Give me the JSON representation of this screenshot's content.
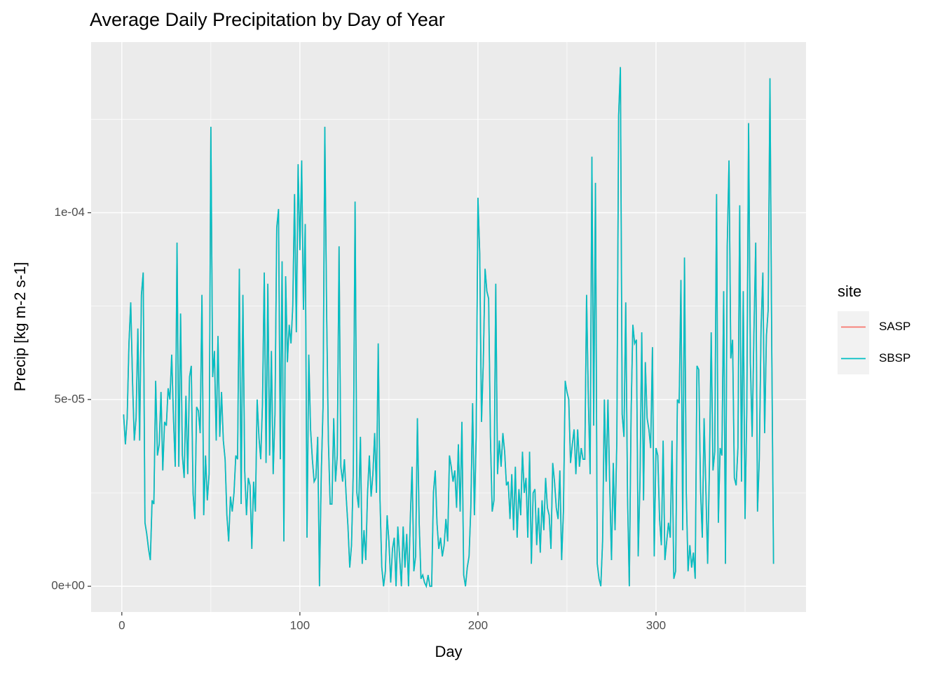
{
  "chart_data": {
    "type": "line",
    "title": "Average Daily Precipitation by Day of Year",
    "x_label": "Day",
    "y_label": "Precip [kg m-2 s-1]",
    "legend_title": "site",
    "legend_position": "right",
    "grid": true,
    "xlim": [
      -17.25,
      384.25
    ],
    "xticks": [
      0,
      100,
      200,
      300
    ],
    "ylim": [
      -6.9e-06,
      0.0001457
    ],
    "yticks": [
      {
        "value": 0,
        "label": "0e+00"
      },
      {
        "value": 5e-05,
        "label": "5e-05"
      },
      {
        "value": 0.0001,
        "label": "1e-04"
      }
    ],
    "x": [
      1,
      2,
      3,
      4,
      5,
      6,
      7,
      8,
      9,
      10,
      11,
      12,
      13,
      14,
      15,
      16,
      17,
      18,
      19,
      20,
      21,
      22,
      23,
      24,
      25,
      26,
      27,
      28,
      29,
      30,
      31,
      32,
      33,
      34,
      35,
      36,
      37,
      38,
      39,
      40,
      41,
      42,
      43,
      44,
      45,
      46,
      47,
      48,
      49,
      50,
      51,
      52,
      53,
      54,
      55,
      56,
      57,
      58,
      59,
      60,
      61,
      62,
      63,
      64,
      65,
      66,
      67,
      68,
      69,
      70,
      71,
      72,
      73,
      74,
      75,
      76,
      77,
      78,
      79,
      80,
      81,
      82,
      83,
      84,
      85,
      86,
      87,
      88,
      89,
      90,
      91,
      92,
      93,
      94,
      95,
      96,
      97,
      98,
      99,
      100,
      101,
      102,
      103,
      104,
      105,
      106,
      107,
      108,
      109,
      110,
      111,
      112,
      113,
      114,
      115,
      116,
      117,
      118,
      119,
      120,
      121,
      122,
      123,
      124,
      125,
      126,
      127,
      128,
      129,
      130,
      131,
      132,
      133,
      134,
      135,
      136,
      137,
      138,
      139,
      140,
      141,
      142,
      143,
      144,
      145,
      146,
      147,
      148,
      149,
      150,
      151,
      152,
      153,
      154,
      155,
      156,
      157,
      158,
      159,
      160,
      161,
      162,
      163,
      164,
      165,
      166,
      167,
      168,
      169,
      170,
      171,
      172,
      173,
      174,
      175,
      176,
      177,
      178,
      179,
      180,
      181,
      182,
      183,
      184,
      185,
      186,
      187,
      188,
      189,
      190,
      191,
      192,
      193,
      194,
      195,
      196,
      197,
      198,
      199,
      200,
      201,
      202,
      203,
      204,
      205,
      206,
      207,
      208,
      209,
      210,
      211,
      212,
      213,
      214,
      215,
      216,
      217,
      218,
      219,
      220,
      221,
      222,
      223,
      224,
      225,
      226,
      227,
      228,
      229,
      230,
      231,
      232,
      233,
      234,
      235,
      236,
      237,
      238,
      239,
      240,
      241,
      242,
      243,
      244,
      245,
      246,
      247,
      248,
      249,
      250,
      251,
      252,
      253,
      254,
      255,
      256,
      257,
      258,
      259,
      260,
      261,
      262,
      263,
      264,
      265,
      266,
      267,
      268,
      269,
      270,
      271,
      272,
      273,
      274,
      275,
      276,
      277,
      278,
      279,
      280,
      281,
      282,
      283,
      284,
      285,
      286,
      287,
      288,
      289,
      290,
      291,
      292,
      293,
      294,
      295,
      296,
      297,
      298,
      299,
      300,
      301,
      302,
      303,
      304,
      305,
      306,
      307,
      308,
      309,
      310,
      311,
      312,
      313,
      314,
      315,
      316,
      317,
      318,
      319,
      320,
      321,
      322,
      323,
      324,
      325,
      326,
      327,
      328,
      329,
      330,
      331,
      332,
      333,
      334,
      335,
      336,
      337,
      338,
      339,
      340,
      341,
      342,
      343,
      344,
      345,
      346,
      347,
      348,
      349,
      350,
      351,
      352,
      353,
      354,
      355,
      356,
      357,
      358,
      359,
      360,
      361,
      362,
      363,
      364,
      365,
      366
    ],
    "series": [
      {
        "name": "SASP",
        "color": "#F8766D",
        "values": [
          4.6e-05,
          3.8e-05,
          4.5e-05,
          6.5e-05,
          7.6e-05,
          5.5e-05,
          3.9e-05,
          4.5e-05,
          6.9e-05,
          3.9e-05,
          7.8e-05,
          8.4e-05,
          1.7e-05,
          1.4e-05,
          1e-05,
          7e-06,
          2.3e-05,
          2.2e-05,
          5.5e-05,
          3.5e-05,
          3.8e-05,
          5.2e-05,
          3.1e-05,
          4.4e-05,
          4.3e-05,
          5.3e-05,
          5e-05,
          6.2e-05,
          4.5e-05,
          3.2e-05,
          9.2e-05,
          3.2e-05,
          7.3e-05,
          3.5e-05,
          2.9e-05,
          5.1e-05,
          3e-05,
          5.6e-05,
          5.9e-05,
          2.5e-05,
          1.8e-05,
          4.8e-05,
          4.7e-05,
          4.1e-05,
          7.8e-05,
          1.9e-05,
          3.5e-05,
          2.3e-05,
          3e-05,
          0.000123,
          5.6e-05,
          6.3e-05,
          3.9e-05,
          6.7e-05,
          4e-05,
          5.2e-05,
          3.9e-05,
          3.4e-05,
          1.9e-05,
          1.2e-05,
          2.4e-05,
          2e-05,
          2.5e-05,
          3.5e-05,
          3.4e-05,
          8.5e-05,
          2.2e-05,
          7.8e-05,
          3.1e-05,
          1.9e-05,
          2.9e-05,
          2.7e-05,
          1e-05,
          2.8e-05,
          2e-05,
          5e-05,
          4e-05,
          3.4e-05,
          4.9e-05,
          8.4e-05,
          3.3e-05,
          8.1e-05,
          3.5e-05,
          6.3e-05,
          3e-05,
          4.6e-05,
          9.6e-05,
          0.000101,
          3.4e-05,
          8.7e-05,
          1.2e-05,
          8.3e-05,
          6e-05,
          7e-05,
          6.5e-05,
          7.5e-05,
          0.000105,
          6.8e-05,
          0.000113,
          9e-05,
          0.000114,
          7.4e-05,
          9.7e-05,
          1.3e-05,
          6.2e-05,
          4.2e-05,
          3.4e-05,
          2.8e-05,
          2.9e-05,
          4e-05,
          0,
          3e-05,
          4.8e-05,
          0.000123,
          7.4e-05,
          3.9e-05,
          2.2e-05,
          2.2e-05,
          4.5e-05,
          2.8e-05,
          3.5e-05,
          9.1e-05,
          3.2e-05,
          2.8e-05,
          3.4e-05,
          2.4e-05,
          1.6e-05,
          5e-06,
          1.1e-05,
          3.1e-05,
          0.000103,
          2.5e-05,
          2.1e-05,
          4e-05,
          6e-06,
          1.5e-05,
          7e-06,
          2.5e-05,
          3.5e-05,
          2.4e-05,
          3e-05,
          4.1e-05,
          2.5e-05,
          6.5e-05,
          2.3e-05,
          5e-06,
          0,
          4e-06,
          1.9e-05,
          1.2e-05,
          1e-06,
          1e-05,
          1.3e-05,
          0,
          1.6e-05,
          8e-06,
          0,
          1.6e-05,
          5e-06,
          1.4e-05,
          0,
          1.8e-05,
          3.2e-05,
          4e-06,
          8e-06,
          4.5e-05,
          1.7e-05,
          2e-06,
          3e-06,
          1e-06,
          0,
          3e-06,
          0,
          0,
          2.5e-05,
          3.1e-05,
          1.7e-05,
          1e-05,
          1.3e-05,
          8e-06,
          1.1e-05,
          1.8e-05,
          1.2e-05,
          3.5e-05,
          3.2e-05,
          2.8e-05,
          3.1e-05,
          2.1e-05,
          3.8e-05,
          2e-05,
          4.4e-05,
          3e-06,
          0,
          5e-06,
          8e-06,
          2.1e-05,
          4.9e-05,
          1.9e-05,
          4e-05,
          0.000104,
          8.9e-05,
          4.4e-05,
          6e-05,
          8.5e-05,
          7.9e-05,
          7.7e-05,
          4e-05,
          2e-05,
          2.3e-05,
          8.1e-05,
          3e-05,
          3.9e-05,
          3.2e-05,
          4.1e-05,
          3.6e-05,
          2.7e-05,
          2.8e-05,
          1.8e-05,
          3e-05,
          1.5e-05,
          3.2e-05,
          1.3e-05,
          2.6e-05,
          1.9e-05,
          3.6e-05,
          2.5e-05,
          2.9e-05,
          1.3e-05,
          3.6e-05,
          6e-06,
          2.5e-05,
          2.6e-05,
          1.1e-05,
          2.1e-05,
          9e-06,
          2.3e-05,
          1.5e-05,
          2.9e-05,
          2.1e-05,
          1.9e-05,
          1e-05,
          3.3e-05,
          2.8e-05,
          2.1e-05,
          1.8e-05,
          3.1e-05,
          7e-06,
          2e-05,
          5.5e-05,
          5.2e-05,
          5e-05,
          3.3e-05,
          3.8e-05,
          4.2e-05,
          3e-05,
          4.2e-05,
          3.2e-05,
          3.7e-05,
          3.4e-05,
          3.4e-05,
          7.8e-05,
          5e-05,
          3e-05,
          0.000115,
          4.3e-05,
          0.000108,
          6e-06,
          2e-06,
          0,
          1.2e-05,
          5e-05,
          2.8e-05,
          5e-05,
          2.7e-05,
          7e-06,
          3.3e-05,
          1.5e-05,
          3.9e-05,
          0.000126,
          0.000139,
          4.6e-05,
          4e-05,
          7.6e-05,
          2.4e-05,
          0,
          4.6e-05,
          7e-05,
          6.5e-05,
          6.6e-05,
          8e-06,
          2.8e-05,
          6.8e-05,
          2.3e-05,
          6e-05,
          4.5e-05,
          4.2e-05,
          3.7e-05,
          6.4e-05,
          8e-06,
          3.7e-05,
          3.5e-05,
          1.8e-05,
          1.1e-05,
          3.9e-05,
          7e-06,
          1.2e-05,
          1.7e-05,
          1.3e-05,
          3.9e-05,
          2e-06,
          4e-06,
          5e-05,
          4.9e-05,
          8.2e-05,
          1.5e-05,
          8.8e-05,
          2.5e-05,
          4e-06,
          1.1e-05,
          5e-06,
          9e-06,
          2e-06,
          5.9e-05,
          5.8e-05,
          2.6e-05,
          1.3e-05,
          4.5e-05,
          2.6e-05,
          6e-06,
          3.2e-05,
          6.8e-05,
          3.1e-05,
          3.6e-05,
          0.000105,
          1.7e-05,
          3.7e-05,
          3.5e-05,
          7.9e-05,
          6e-06,
          9.1e-05,
          0.000114,
          6.1e-05,
          6.6e-05,
          2.9e-05,
          2.7e-05,
          3.7e-05,
          0.000102,
          2.8e-05,
          7.9e-05,
          1.8e-05,
          4.8e-05,
          0.000124,
          6e-05,
          4e-05,
          6.8e-05,
          9.2e-05,
          2e-05,
          3.4e-05,
          6.9e-05,
          8.4e-05,
          4.1e-05,
          6.7e-05,
          7.4e-05,
          0.000136,
          6.4e-05,
          6e-06
        ]
      },
      {
        "name": "SBSP",
        "color": "#00BFC4",
        "values": [
          4.6e-05,
          3.8e-05,
          4.5e-05,
          6.5e-05,
          7.6e-05,
          5.5e-05,
          3.9e-05,
          4.5e-05,
          6.9e-05,
          3.9e-05,
          7.8e-05,
          8.4e-05,
          1.7e-05,
          1.4e-05,
          1e-05,
          7e-06,
          2.3e-05,
          2.2e-05,
          5.5e-05,
          3.5e-05,
          3.8e-05,
          5.2e-05,
          3.1e-05,
          4.4e-05,
          4.3e-05,
          5.3e-05,
          5e-05,
          6.2e-05,
          4.5e-05,
          3.2e-05,
          9.2e-05,
          3.2e-05,
          7.3e-05,
          3.5e-05,
          2.9e-05,
          5.1e-05,
          3e-05,
          5.6e-05,
          5.9e-05,
          2.5e-05,
          1.8e-05,
          4.8e-05,
          4.7e-05,
          4.1e-05,
          7.8e-05,
          1.9e-05,
          3.5e-05,
          2.3e-05,
          3e-05,
          0.000123,
          5.6e-05,
          6.3e-05,
          3.9e-05,
          6.7e-05,
          4e-05,
          5.2e-05,
          3.9e-05,
          3.4e-05,
          1.9e-05,
          1.2e-05,
          2.4e-05,
          2e-05,
          2.5e-05,
          3.5e-05,
          3.4e-05,
          8.5e-05,
          2.2e-05,
          7.8e-05,
          3.1e-05,
          1.9e-05,
          2.9e-05,
          2.7e-05,
          1e-05,
          2.8e-05,
          2e-05,
          5e-05,
          4e-05,
          3.4e-05,
          4.9e-05,
          8.4e-05,
          3.3e-05,
          8.1e-05,
          3.5e-05,
          6.3e-05,
          3e-05,
          4.6e-05,
          9.6e-05,
          0.000101,
          3.4e-05,
          8.7e-05,
          1.2e-05,
          8.3e-05,
          6e-05,
          7e-05,
          6.5e-05,
          7.5e-05,
          0.000105,
          6.8e-05,
          0.000113,
          9e-05,
          0.000114,
          7.4e-05,
          9.7e-05,
          1.3e-05,
          6.2e-05,
          4.2e-05,
          3.4e-05,
          2.8e-05,
          2.9e-05,
          4e-05,
          0,
          3e-05,
          4.8e-05,
          0.000123,
          7.4e-05,
          3.9e-05,
          2.2e-05,
          2.2e-05,
          4.5e-05,
          2.8e-05,
          3.5e-05,
          9.1e-05,
          3.2e-05,
          2.8e-05,
          3.4e-05,
          2.4e-05,
          1.6e-05,
          5e-06,
          1.1e-05,
          3.1e-05,
          0.000103,
          2.5e-05,
          2.1e-05,
          4e-05,
          6e-06,
          1.5e-05,
          7e-06,
          2.5e-05,
          3.5e-05,
          2.4e-05,
          3e-05,
          4.1e-05,
          2.5e-05,
          6.5e-05,
          2.3e-05,
          5e-06,
          0,
          4e-06,
          1.9e-05,
          1.2e-05,
          1e-06,
          1e-05,
          1.3e-05,
          0,
          1.6e-05,
          8e-06,
          0,
          1.6e-05,
          5e-06,
          1.4e-05,
          0,
          1.8e-05,
          3.2e-05,
          4e-06,
          8e-06,
          4.5e-05,
          1.7e-05,
          2e-06,
          3e-06,
          1e-06,
          0,
          3e-06,
          0,
          0,
          2.5e-05,
          3.1e-05,
          1.7e-05,
          1e-05,
          1.3e-05,
          8e-06,
          1.1e-05,
          1.8e-05,
          1.2e-05,
          3.5e-05,
          3.2e-05,
          2.8e-05,
          3.1e-05,
          2.1e-05,
          3.8e-05,
          2e-05,
          4.4e-05,
          3e-06,
          0,
          5e-06,
          8e-06,
          2.1e-05,
          4.9e-05,
          1.9e-05,
          4e-05,
          0.000104,
          8.9e-05,
          4.4e-05,
          6e-05,
          8.5e-05,
          7.9e-05,
          7.7e-05,
          4e-05,
          2e-05,
          2.3e-05,
          8.1e-05,
          3e-05,
          3.9e-05,
          3.2e-05,
          4.1e-05,
          3.6e-05,
          2.7e-05,
          2.8e-05,
          1.8e-05,
          3e-05,
          1.5e-05,
          3.2e-05,
          1.3e-05,
          2.6e-05,
          1.9e-05,
          3.6e-05,
          2.5e-05,
          2.9e-05,
          1.3e-05,
          3.6e-05,
          6e-06,
          2.5e-05,
          2.6e-05,
          1.1e-05,
          2.1e-05,
          9e-06,
          2.3e-05,
          1.5e-05,
          2.9e-05,
          2.1e-05,
          1.9e-05,
          1e-05,
          3.3e-05,
          2.8e-05,
          2.1e-05,
          1.8e-05,
          3.1e-05,
          7e-06,
          2e-05,
          5.5e-05,
          5.2e-05,
          5e-05,
          3.3e-05,
          3.8e-05,
          4.2e-05,
          3e-05,
          4.2e-05,
          3.2e-05,
          3.7e-05,
          3.4e-05,
          3.4e-05,
          7.8e-05,
          5e-05,
          3e-05,
          0.000115,
          4.3e-05,
          0.000108,
          6e-06,
          2e-06,
          0,
          1.2e-05,
          5e-05,
          2.8e-05,
          5e-05,
          2.7e-05,
          7e-06,
          3.3e-05,
          1.5e-05,
          3.9e-05,
          0.000126,
          0.000139,
          4.6e-05,
          4e-05,
          7.6e-05,
          2.4e-05,
          0,
          4.6e-05,
          7e-05,
          6.5e-05,
          6.6e-05,
          8e-06,
          2.8e-05,
          6.8e-05,
          2.3e-05,
          6e-05,
          4.5e-05,
          4.2e-05,
          3.7e-05,
          6.4e-05,
          8e-06,
          3.7e-05,
          3.5e-05,
          1.8e-05,
          1.1e-05,
          3.9e-05,
          7e-06,
          1.2e-05,
          1.7e-05,
          1.3e-05,
          3.9e-05,
          2e-06,
          4e-06,
          5e-05,
          4.9e-05,
          8.2e-05,
          1.5e-05,
          8.8e-05,
          2.5e-05,
          4e-06,
          1.1e-05,
          5e-06,
          9e-06,
          2e-06,
          5.9e-05,
          5.8e-05,
          2.6e-05,
          1.3e-05,
          4.5e-05,
          2.6e-05,
          6e-06,
          3.2e-05,
          6.8e-05,
          3.1e-05,
          3.6e-05,
          0.000105,
          1.7e-05,
          3.7e-05,
          3.5e-05,
          7.9e-05,
          6e-06,
          9.1e-05,
          0.000114,
          6.1e-05,
          6.6e-05,
          2.9e-05,
          2.7e-05,
          3.7e-05,
          0.000102,
          2.8e-05,
          7.9e-05,
          1.8e-05,
          4.8e-05,
          0.000124,
          6e-05,
          4e-05,
          6.8e-05,
          9.2e-05,
          2e-05,
          3.4e-05,
          6.9e-05,
          8.4e-05,
          4.1e-05,
          6.7e-05,
          7.4e-05,
          0.000136,
          6.4e-05,
          6e-06
        ]
      }
    ]
  }
}
